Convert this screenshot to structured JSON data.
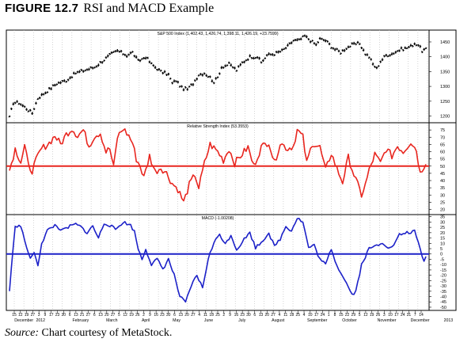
{
  "figure": {
    "number": "FIGURE 12.7",
    "title": "RSI and MACD Example",
    "source_label": "Source:",
    "source_text": " Chart courtesy of MetaStock."
  },
  "chart_data": [
    {
      "type": "line",
      "style": "price-bars",
      "title": "S&P 500 Index (1,402.43, 1,426.74, 1,398.11, 1,426.19, +23.7599)",
      "color": "#000000",
      "ylim": [
        1180,
        1490
      ],
      "yticks": [
        1200,
        1250,
        1300,
        1350,
        1400,
        1450
      ],
      "anchors": [
        [
          0,
          1195
        ],
        [
          2,
          1245
        ],
        [
          5,
          1245
        ],
        [
          9,
          1225
        ],
        [
          12,
          1210
        ],
        [
          15,
          1260
        ],
        [
          20,
          1285
        ],
        [
          25,
          1310
        ],
        [
          30,
          1320
        ],
        [
          35,
          1345
        ],
        [
          40,
          1355
        ],
        [
          45,
          1365
        ],
        [
          50,
          1390
        ],
        [
          54,
          1410
        ],
        [
          57,
          1420
        ],
        [
          62,
          1405
        ],
        [
          65,
          1415
        ],
        [
          68,
          1385
        ],
        [
          72,
          1400
        ],
        [
          75,
          1375
        ],
        [
          78,
          1360
        ],
        [
          80,
          1350
        ],
        [
          84,
          1340
        ],
        [
          86,
          1310
        ],
        [
          88,
          1320
        ],
        [
          91,
          1295
        ],
        [
          94,
          1290
        ],
        [
          97,
          1310
        ],
        [
          100,
          1340
        ],
        [
          103,
          1345
        ],
        [
          106,
          1330
        ],
        [
          108,
          1315
        ],
        [
          110,
          1330
        ],
        [
          112,
          1365
        ],
        [
          116,
          1375
        ],
        [
          120,
          1355
        ],
        [
          123,
          1380
        ],
        [
          127,
          1400
        ],
        [
          131,
          1400
        ],
        [
          133,
          1380
        ],
        [
          136,
          1405
        ],
        [
          140,
          1410
        ],
        [
          144,
          1420
        ],
        [
          147,
          1435
        ],
        [
          150,
          1455
        ],
        [
          153,
          1455
        ],
        [
          156,
          1470
        ],
        [
          158,
          1460
        ],
        [
          162,
          1440
        ],
        [
          164,
          1460
        ],
        [
          167,
          1455
        ],
        [
          170,
          1435
        ],
        [
          172,
          1425
        ],
        [
          175,
          1415
        ],
        [
          178,
          1430
        ],
        [
          181,
          1440
        ],
        [
          185,
          1445
        ],
        [
          188,
          1410
        ],
        [
          190,
          1400
        ],
        [
          192,
          1375
        ],
        [
          194,
          1360
        ],
        [
          196,
          1385
        ],
        [
          199,
          1405
        ],
        [
          202,
          1410
        ],
        [
          205,
          1420
        ],
        [
          207,
          1425
        ],
        [
          210,
          1430
        ],
        [
          212,
          1435
        ],
        [
          214,
          1445
        ],
        [
          216,
          1440
        ],
        [
          218,
          1420
        ],
        [
          220,
          1426
        ]
      ]
    },
    {
      "type": "line",
      "title": "Relative Strength Index (53.3553)",
      "color": "#e8261f",
      "reference_line": 50,
      "ylim": [
        17,
        80
      ],
      "yticks": [
        20,
        25,
        30,
        35,
        40,
        45,
        50,
        55,
        60,
        65,
        70,
        75
      ],
      "anchors": [
        [
          0,
          47
        ],
        [
          3,
          62
        ],
        [
          6,
          53
        ],
        [
          8,
          64
        ],
        [
          10,
          50
        ],
        [
          12,
          47
        ],
        [
          15,
          57
        ],
        [
          17,
          62
        ],
        [
          21,
          66
        ],
        [
          24,
          71
        ],
        [
          27,
          65
        ],
        [
          30,
          72
        ],
        [
          33,
          76
        ],
        [
          36,
          71
        ],
        [
          39,
          75
        ],
        [
          42,
          64
        ],
        [
          45,
          71
        ],
        [
          48,
          73
        ],
        [
          51,
          60
        ],
        [
          53,
          62
        ],
        [
          55,
          49
        ],
        [
          57,
          70
        ],
        [
          60,
          76
        ],
        [
          63,
          71
        ],
        [
          65,
          66
        ],
        [
          67,
          55
        ],
        [
          69,
          50
        ],
        [
          71,
          42
        ],
        [
          74,
          57
        ],
        [
          77,
          46
        ],
        [
          80,
          49
        ],
        [
          83,
          45
        ],
        [
          86,
          38
        ],
        [
          89,
          34
        ],
        [
          92,
          25
        ],
        [
          95,
          37
        ],
        [
          98,
          44
        ],
        [
          100,
          35
        ],
        [
          103,
          52
        ],
        [
          106,
          65
        ],
        [
          110,
          60
        ],
        [
          113,
          54
        ],
        [
          116,
          62
        ],
        [
          119,
          52
        ],
        [
          122,
          57
        ],
        [
          126,
          63
        ],
        [
          129,
          50
        ],
        [
          133,
          63
        ],
        [
          137,
          67
        ],
        [
          140,
          52
        ],
        [
          143,
          66
        ],
        [
          147,
          62
        ],
        [
          150,
          64
        ],
        [
          152,
          75
        ],
        [
          155,
          70
        ],
        [
          157,
          52
        ],
        [
          160,
          66
        ],
        [
          164,
          63
        ],
        [
          167,
          47
        ],
        [
          170,
          59
        ],
        [
          173,
          48
        ],
        [
          176,
          39
        ],
        [
          179,
          56
        ],
        [
          182,
          44
        ],
        [
          186,
          30
        ],
        [
          188,
          37
        ],
        [
          190,
          47
        ],
        [
          193,
          58
        ],
        [
          196,
          52
        ],
        [
          199,
          62
        ],
        [
          202,
          57
        ],
        [
          205,
          64
        ],
        [
          208,
          60
        ],
        [
          212,
          67
        ],
        [
          215,
          61
        ],
        [
          217,
          45
        ],
        [
          220,
          53
        ]
      ]
    },
    {
      "type": "line",
      "title": "MACD (-1.00208)",
      "color": "#1c21c8",
      "reference_line": 0,
      "ylim": [
        -53,
        37
      ],
      "yticks": [
        -50,
        -45,
        -40,
        -35,
        -30,
        -25,
        -20,
        -15,
        -10,
        -5,
        0,
        5,
        10,
        15,
        20,
        25,
        30,
        35
      ],
      "anchors": [
        [
          0,
          -35
        ],
        [
          1,
          -12
        ],
        [
          3,
          25
        ],
        [
          5,
          28
        ],
        [
          7,
          21
        ],
        [
          9,
          5
        ],
        [
          11,
          -3
        ],
        [
          13,
          0
        ],
        [
          15,
          -10
        ],
        [
          17,
          10
        ],
        [
          20,
          22
        ],
        [
          24,
          27
        ],
        [
          28,
          22
        ],
        [
          32,
          26
        ],
        [
          35,
          28
        ],
        [
          38,
          25
        ],
        [
          41,
          20
        ],
        [
          44,
          26
        ],
        [
          47,
          15
        ],
        [
          50,
          29
        ],
        [
          53,
          27
        ],
        [
          56,
          23
        ],
        [
          60,
          30
        ],
        [
          64,
          27
        ],
        [
          66,
          21
        ],
        [
          68,
          5
        ],
        [
          70,
          -5
        ],
        [
          72,
          5
        ],
        [
          75,
          -10
        ],
        [
          78,
          -5
        ],
        [
          81,
          -14
        ],
        [
          84,
          -5
        ],
        [
          87,
          -20
        ],
        [
          90,
          -40
        ],
        [
          93,
          -46
        ],
        [
          96,
          -30
        ],
        [
          99,
          -20
        ],
        [
          102,
          -32
        ],
        [
          105,
          -4
        ],
        [
          108,
          10
        ],
        [
          111,
          19
        ],
        [
          114,
          9
        ],
        [
          117,
          18
        ],
        [
          120,
          4
        ],
        [
          124,
          14
        ],
        [
          127,
          20
        ],
        [
          130,
          6
        ],
        [
          133,
          11
        ],
        [
          137,
          20
        ],
        [
          140,
          7
        ],
        [
          143,
          14
        ],
        [
          146,
          26
        ],
        [
          149,
          22
        ],
        [
          152,
          34
        ],
        [
          155,
          30
        ],
        [
          158,
          6
        ],
        [
          161,
          8
        ],
        [
          164,
          -5
        ],
        [
          167,
          -10
        ],
        [
          170,
          5
        ],
        [
          173,
          -11
        ],
        [
          176,
          -20
        ],
        [
          179,
          -31
        ],
        [
          181,
          -38
        ],
        [
          183,
          -35
        ],
        [
          186,
          -10
        ],
        [
          190,
          5
        ],
        [
          194,
          8
        ],
        [
          197,
          11
        ],
        [
          201,
          5
        ],
        [
          204,
          11
        ],
        [
          206,
          18
        ],
        [
          210,
          20
        ],
        [
          214,
          21
        ],
        [
          217,
          5
        ],
        [
          219,
          -8
        ],
        [
          220,
          -1
        ]
      ]
    }
  ],
  "x_axis": {
    "day_labels": [
      "15",
      "12",
      "19",
      "27",
      "3",
      "9",
      "17",
      "23",
      "30",
      "6",
      "13",
      "21",
      "27",
      "6",
      "13",
      "20",
      "27",
      "5",
      "12",
      "19",
      "26",
      "2",
      "9",
      "16",
      "23",
      "30",
      "6",
      "13",
      "20",
      "27",
      "4",
      "11",
      "18",
      "25",
      "2",
      "9",
      "16",
      "23",
      "30",
      "6",
      "13",
      "20",
      "27",
      "4",
      "11",
      "18",
      "25",
      "4",
      "10",
      "17",
      "24",
      "1",
      "8",
      "15",
      "22",
      "29",
      "5",
      "12",
      "19",
      "26",
      "3",
      "10",
      "17",
      "24",
      "31",
      "7",
      "14"
    ],
    "month_labels": [
      {
        "text": "December",
        "at": 0.018
      },
      {
        "text": "2012",
        "at": 0.066
      },
      {
        "text": "February",
        "at": 0.147
      },
      {
        "text": "March",
        "at": 0.222
      },
      {
        "text": "April",
        "at": 0.301
      },
      {
        "text": "May",
        "at": 0.37
      },
      {
        "text": "June",
        "at": 0.44
      },
      {
        "text": "July",
        "at": 0.516
      },
      {
        "text": "August",
        "at": 0.59
      },
      {
        "text": "September",
        "at": 0.669
      },
      {
        "text": "October",
        "at": 0.747
      },
      {
        "text": "November",
        "at": 0.825
      },
      {
        "text": "December",
        "at": 0.899
      },
      {
        "text": "2013",
        "at": 0.973
      }
    ]
  }
}
